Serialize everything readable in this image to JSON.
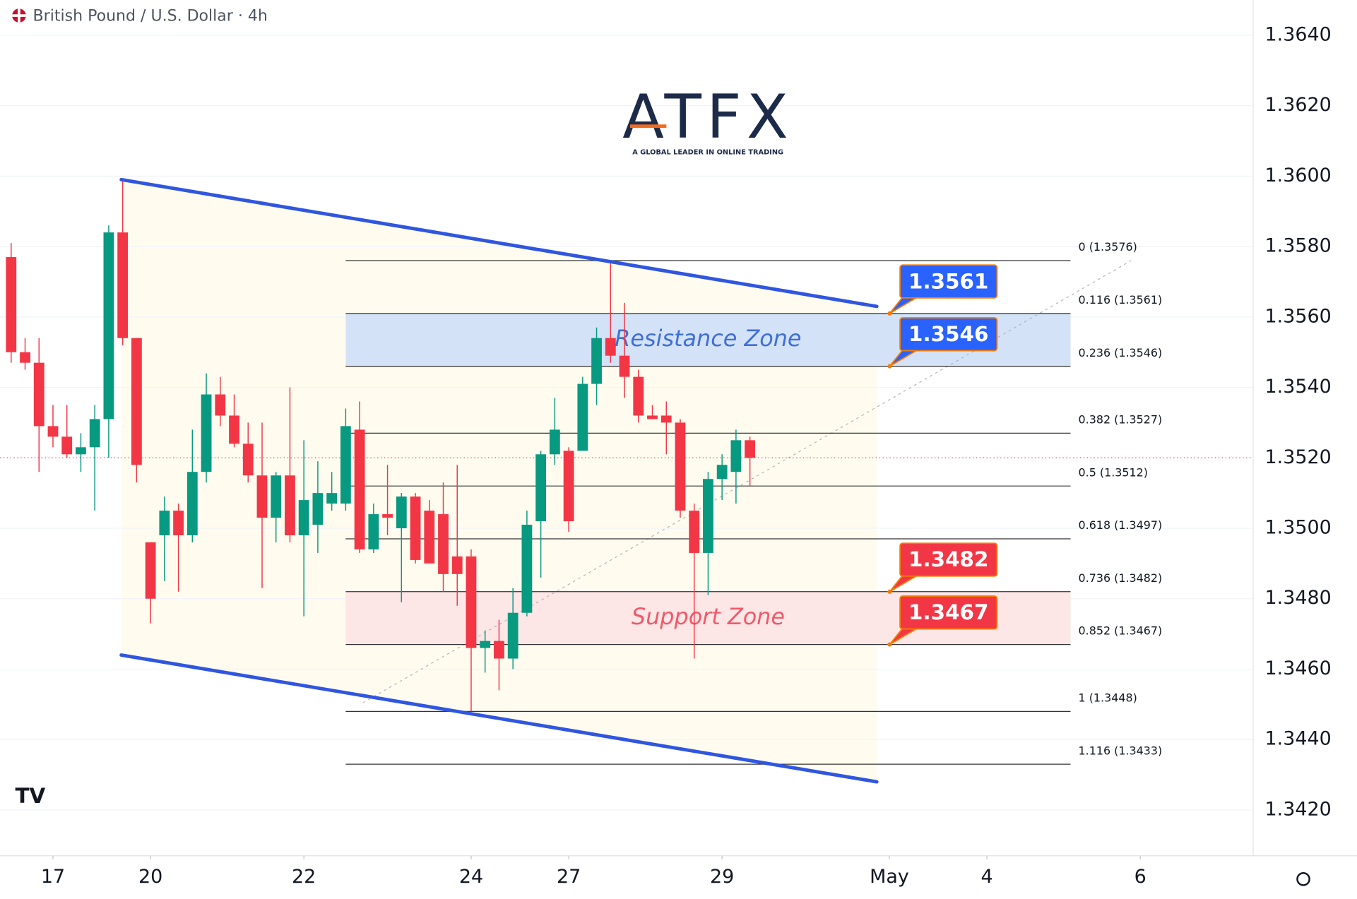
{
  "chart_data": {
    "type": "candlestick",
    "title": "British Pound / U.S. Dollar · 4h",
    "x": [
      0,
      1,
      2,
      3,
      4,
      5,
      6,
      7,
      8,
      9,
      10,
      11,
      12,
      13,
      14,
      15,
      16,
      17,
      18,
      19,
      20,
      21,
      22,
      23,
      24,
      25,
      26,
      27,
      28,
      29,
      30,
      31,
      32,
      33,
      34,
      35,
      36,
      37,
      38,
      39,
      40,
      41,
      42,
      43,
      44,
      45,
      46,
      47,
      48,
      49,
      50,
      51,
      52,
      53
    ],
    "open": [
      1.3577,
      1.355,
      1.3547,
      1.3529,
      1.3526,
      1.3521,
      1.3523,
      1.3531,
      1.3584,
      1.3554,
      1.3496,
      1.3498,
      1.3505,
      1.3498,
      1.3516,
      1.3538,
      1.3532,
      1.3524,
      1.3515,
      1.3503,
      1.3515,
      1.3498,
      1.3501,
      1.3507,
      1.3507,
      1.3528,
      1.3494,
      1.3504,
      1.35,
      1.3509,
      1.3505,
      1.3504,
      1.3492,
      1.3492,
      1.3466,
      1.3468,
      1.3463,
      1.3476,
      1.3502,
      1.3521,
      1.3522,
      1.3522,
      1.3541,
      1.3554,
      1.3549,
      1.3543,
      1.3532,
      1.3532,
      1.353,
      1.3505,
      1.3493,
      1.3514,
      1.3516,
      1.3525
    ],
    "high": [
      1.3581,
      1.3554,
      1.3554,
      1.3535,
      1.3535,
      1.3527,
      1.3535,
      1.3586,
      1.3599,
      1.3554,
      1.3496,
      1.3509,
      1.3507,
      1.3528,
      1.3544,
      1.3543,
      1.3538,
      1.353,
      1.353,
      1.3516,
      1.354,
      1.3525,
      1.3519,
      1.3516,
      1.3534,
      1.3536,
      1.3507,
      1.3518,
      1.351,
      1.351,
      1.3508,
      1.3513,
      1.3518,
      1.3494,
      1.3471,
      1.3474,
      1.3483,
      1.3505,
      1.3522,
      1.3537,
      1.3523,
      1.3543,
      1.3557,
      1.3576,
      1.3564,
      1.3545,
      1.3535,
      1.3536,
      1.3531,
      1.3507,
      1.3516,
      1.3521,
      1.3528,
      1.3526
    ],
    "low": [
      1.3547,
      1.3545,
      1.3516,
      1.3523,
      1.352,
      1.3516,
      1.3505,
      1.352,
      1.3552,
      1.3513,
      1.3473,
      1.3485,
      1.3482,
      1.3496,
      1.3513,
      1.3529,
      1.3523,
      1.3513,
      1.3483,
      1.3496,
      1.3496,
      1.3475,
      1.3493,
      1.3505,
      1.3505,
      1.3493,
      1.3493,
      1.3498,
      1.3479,
      1.349,
      1.349,
      1.3482,
      1.3478,
      1.3448,
      1.3459,
      1.3454,
      1.346,
      1.3475,
      1.3486,
      1.3518,
      1.3499,
      1.3522,
      1.3535,
      1.3547,
      1.3537,
      1.353,
      1.3531,
      1.3521,
      1.3503,
      1.3463,
      1.3481,
      1.3508,
      1.3507,
      1.3512
    ],
    "close": [
      1.355,
      1.3547,
      1.3529,
      1.3526,
      1.3521,
      1.3523,
      1.3531,
      1.3584,
      1.3554,
      1.3518,
      1.348,
      1.3505,
      1.3498,
      1.3516,
      1.3538,
      1.3532,
      1.3524,
      1.3515,
      1.3503,
      1.3515,
      1.3498,
      1.3508,
      1.351,
      1.351,
      1.3529,
      1.3494,
      1.3504,
      1.3503,
      1.3509,
      1.3491,
      1.349,
      1.3487,
      1.3487,
      1.3466,
      1.3468,
      1.3463,
      1.3476,
      1.3501,
      1.3521,
      1.3528,
      1.3502,
      1.3541,
      1.3554,
      1.3549,
      1.3543,
      1.3532,
      1.3531,
      1.353,
      1.3505,
      1.3493,
      1.3514,
      1.3518,
      1.3525,
      1.352
    ],
    "up_color": "#089981",
    "down_color": "#f23645",
    "xlim": [
      -0.8,
      89.1
    ],
    "xticks": [
      {
        "value": 3,
        "label": "17"
      },
      {
        "value": 10,
        "label": "20"
      },
      {
        "value": 21,
        "label": "22"
      },
      {
        "value": 33,
        "label": "24"
      },
      {
        "value": 40,
        "label": "27"
      },
      {
        "value": 51,
        "label": "29"
      },
      {
        "value": 63,
        "label": "May"
      },
      {
        "value": 70,
        "label": "4"
      },
      {
        "value": 81,
        "label": "6"
      }
    ],
    "ylim": [
      1.3407,
      1.365
    ],
    "yticks": [
      {
        "value": 1.364,
        "label": "1.3640"
      },
      {
        "value": 1.362,
        "label": "1.3620"
      },
      {
        "value": 1.36,
        "label": "1.3600"
      },
      {
        "value": 1.358,
        "label": "1.3580"
      },
      {
        "value": 1.356,
        "label": "1.3560"
      },
      {
        "value": 1.354,
        "label": "1.3540"
      },
      {
        "value": 1.352,
        "label": "1.3520"
      },
      {
        "value": 1.35,
        "label": "1.3500"
      },
      {
        "value": 1.348,
        "label": "1.3480"
      },
      {
        "value": 1.346,
        "label": "1.3460"
      },
      {
        "value": 1.344,
        "label": "1.3440"
      },
      {
        "value": 1.342,
        "label": "1.3420"
      }
    ],
    "grid": true,
    "last_price": 1.352,
    "trend_lines": [
      {
        "x": [
          7.9,
          62.1
        ],
        "y": [
          1.3599,
          1.3563
        ],
        "color": "#3056e0"
      },
      {
        "x": [
          7.9,
          62.1
        ],
        "y": [
          1.3464,
          1.3428
        ],
        "color": "#3056e0"
      }
    ],
    "fib_x": [
      24,
      76
    ],
    "fib_levels": [
      {
        "value": 1.3576,
        "label": "0 (1.3576)"
      },
      {
        "value": 1.3561,
        "label": "0.116 (1.3561)"
      },
      {
        "value": 1.3546,
        "label": "0.236 (1.3546)"
      },
      {
        "value": 1.3527,
        "label": "0.382 (1.3527)"
      },
      {
        "value": 1.3512,
        "label": "0.5 (1.3512)"
      },
      {
        "value": 1.3497,
        "label": "0.618 (1.3497)"
      },
      {
        "value": 1.3482,
        "label": "0.736 (1.3482)"
      },
      {
        "value": 1.3467,
        "label": "0.852 (1.3467)"
      },
      {
        "value": 1.3448,
        "label": "1 (1.3448)"
      },
      {
        "value": 1.3433,
        "label": "1.116 (1.3433)"
      }
    ],
    "zones": [
      {
        "label": "Resistance Zone",
        "low": 1.3546,
        "high": 1.3561,
        "color": "#d3e2f7",
        "text_color": "#3f6fd8"
      },
      {
        "label": "Support Zone",
        "low": 1.3467,
        "high": 1.3482,
        "color": "#fde6e6",
        "text_color": "#f05a6a"
      }
    ],
    "callouts": [
      {
        "value": 1.3561,
        "color": "#2962ff"
      },
      {
        "value": 1.3546,
        "color": "#2962ff"
      },
      {
        "value": 1.3482,
        "color": "#f23645"
      },
      {
        "value": 1.3467,
        "color": "#f23645"
      }
    ]
  },
  "logo": {
    "text": "ATFX",
    "tagline": "A GLOBAL LEADER IN ONLINE TRADING"
  }
}
